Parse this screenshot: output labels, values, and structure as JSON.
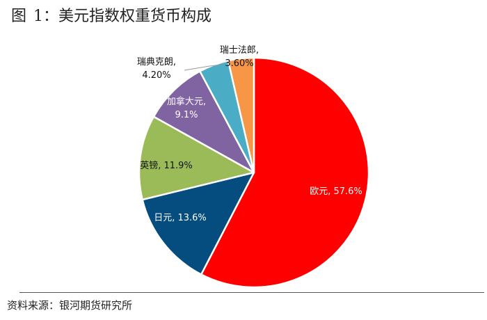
{
  "figure": {
    "title_prefix": "图",
    "title_number": "1：",
    "title_text": "美元指数权重货币构成"
  },
  "source": {
    "text": "资料来源：银河期货研究所"
  },
  "chart_data": {
    "type": "pie",
    "title": "美元指数权重货币构成",
    "start_angle": "12 o'clock",
    "direction": "clockwise",
    "slices": [
      {
        "name": "欧元",
        "value": 57.6,
        "label": "欧元, 57.6%",
        "color": "#ff0000",
        "label_color": "#ffffff"
      },
      {
        "name": "日元",
        "value": 13.6,
        "label": "日元, 13.6%",
        "color": "#054c7f",
        "label_color": "#ffffff"
      },
      {
        "name": "英镑",
        "value": 11.9,
        "label": "英镑, 11.9%",
        "color": "#9bbb59",
        "label_color": "#111111"
      },
      {
        "name": "加拿大元",
        "value": 9.1,
        "label_line1": "加拿大元,",
        "label_line2": "9.1%",
        "color": "#8064a2",
        "label_color": "#ffffff"
      },
      {
        "name": "瑞典克朗",
        "value": 4.2,
        "label_line1": "瑞典克朗,",
        "label_line2": "4.20%",
        "color": "#4bacc6",
        "label_color": "#111111"
      },
      {
        "name": "瑞士法郎",
        "value": 3.6,
        "label_line1": "瑞士法郎,",
        "label_line2": "3.60%",
        "color": "#f79646",
        "label_color": "#111111"
      }
    ]
  }
}
